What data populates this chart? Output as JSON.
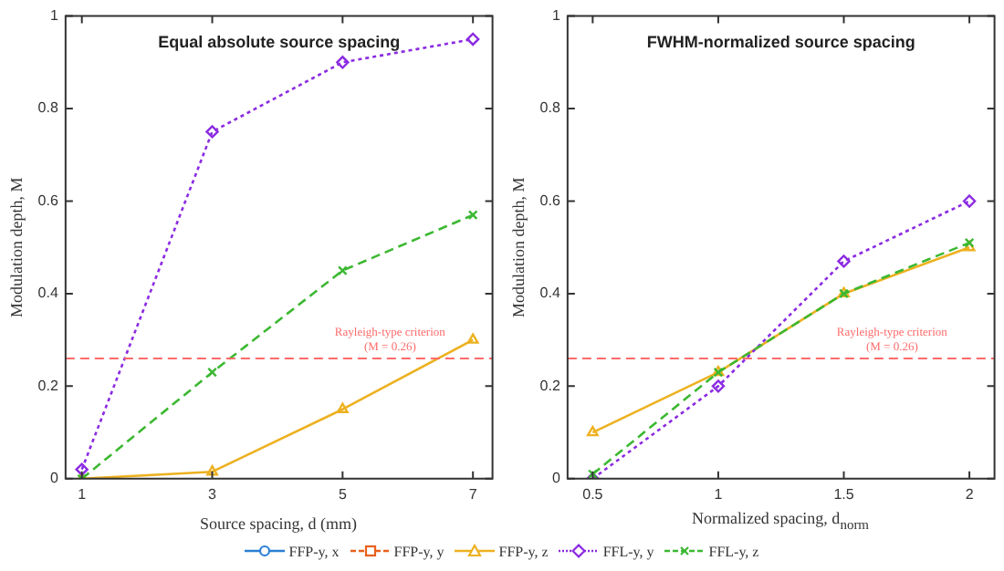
{
  "chart_data": [
    {
      "type": "line",
      "title": "Equal absolute source spacing",
      "xlabel": "Source spacing, d (mm)",
      "ylabel": "Modulation depth, M",
      "x": [
        1,
        3,
        5,
        7
      ],
      "xlim": [
        0.75,
        7.3
      ],
      "xticks": [
        1,
        3,
        5,
        7
      ],
      "ylim": [
        0,
        1
      ],
      "yticks": [
        0,
        0.2,
        0.4,
        0.6,
        0.8,
        1
      ],
      "grid": false,
      "legend": "bottom",
      "ref_lines": [
        {
          "axis": "y",
          "value": 0.26,
          "label": "Rayleigh-type criterion\n(M = 0.26)",
          "color": "#ff6b6b",
          "line_style": "dashed"
        }
      ],
      "series": [
        {
          "name": "FFP-y, x",
          "color": "#2a7fd4",
          "marker": "circle",
          "line_style": "solid",
          "values": [
            null,
            null,
            null,
            null
          ]
        },
        {
          "name": "FFP-y, y",
          "color": "#e8601c",
          "marker": "square",
          "line_style": "dashed",
          "values": [
            null,
            null,
            null,
            null
          ]
        },
        {
          "name": "FFP-y, z",
          "color": "#edb120",
          "marker": "triangle",
          "line_style": "solid",
          "values": [
            0,
            0.015,
            0.15,
            0.3
          ]
        },
        {
          "name": "FFL-y, y",
          "color": "#8b2be2",
          "marker": "diamond",
          "line_style": "dotted",
          "values": [
            0.02,
            0.75,
            0.9,
            0.95
          ]
        },
        {
          "name": "FFL-y, z",
          "color": "#3cb832",
          "marker": "cross",
          "line_style": "dashed",
          "values": [
            0,
            0.23,
            0.45,
            0.57
          ]
        }
      ]
    },
    {
      "type": "line",
      "title": "FWHM-normalized source spacing",
      "xlabel": "Normalized spacing, d$_{norm}$",
      "ylabel": "Modulation depth, M",
      "x": [
        0.5,
        1,
        1.5,
        2
      ],
      "xlim": [
        0.4,
        2.1
      ],
      "xticks": [
        0.5,
        1,
        1.5,
        2
      ],
      "ylim": [
        0,
        1
      ],
      "yticks": [
        0,
        0.2,
        0.4,
        0.6,
        0.8,
        1
      ],
      "grid": false,
      "ref_lines": [
        {
          "axis": "y",
          "value": 0.26,
          "label": "Rayleigh-type criterion\n(M = 0.26)",
          "color": "#ff6b6b",
          "line_style": "dashed"
        }
      ],
      "series": [
        {
          "color": "#edb120",
          "marker": "triangle",
          "line_style": "solid",
          "values": [
            0.1,
            0.23,
            0.4,
            0.5
          ]
        },
        {
          "color": "#8b2be2",
          "marker": "diamond",
          "line_style": "dotted",
          "values": [
            0,
            0.2,
            0.47,
            0.6
          ]
        },
        {
          "color": "#3cb832",
          "marker": "cross",
          "line_style": "dashed",
          "values": [
            0.01,
            0.23,
            0.4,
            0.51
          ]
        }
      ]
    }
  ]
}
